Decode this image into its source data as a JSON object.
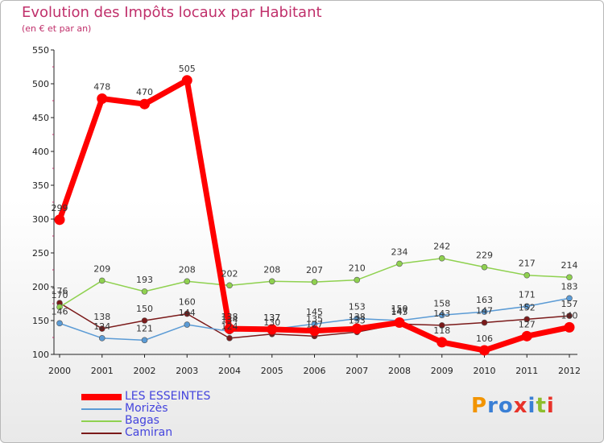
{
  "title": "Evolution des Impôts locaux par Habitant",
  "subtitle": "(en € et par an)",
  "logo": {
    "text": "Proxiti",
    "colors": [
      "#f29400",
      "#3a7fd5",
      "#3a7fd5",
      "#e8332a",
      "#3a7fd5",
      "#8dbe2d",
      "#e8332a"
    ]
  },
  "chart_data": {
    "type": "line",
    "x": [
      "2000",
      "2001",
      "2002",
      "2003",
      "2004",
      "2005",
      "2006",
      "2007",
      "2008",
      "2009",
      "2010",
      "2011",
      "2012"
    ],
    "ylim": [
      100,
      550
    ],
    "yticks": [
      100,
      150,
      200,
      250,
      300,
      350,
      400,
      450,
      500,
      550
    ],
    "grid": false,
    "legend_position": "bottom-left",
    "series": [
      {
        "name": "LES ESSEINTES",
        "color": "#ff0000",
        "values": [
          299,
          478,
          470,
          505,
          138,
          137,
          135,
          138,
          147,
          118,
          106,
          127,
          140
        ]
      },
      {
        "name": "Morizès",
        "color": "#5b9bd5",
        "values": [
          146,
          124,
          121,
          144,
          134,
          137,
          145,
          153,
          150,
          158,
          163,
          171,
          183
        ]
      },
      {
        "name": "Bagas",
        "color": "#8fd14f",
        "values": [
          170,
          209,
          193,
          208,
          202,
          208,
          207,
          210,
          234,
          242,
          229,
          217,
          214
        ]
      },
      {
        "name": "Camiran",
        "color": "#7b1a1a",
        "values": [
          176,
          138,
          150,
          160,
          124,
          130,
          127,
          133,
          145,
          143,
          147,
          152,
          157
        ]
      }
    ]
  }
}
